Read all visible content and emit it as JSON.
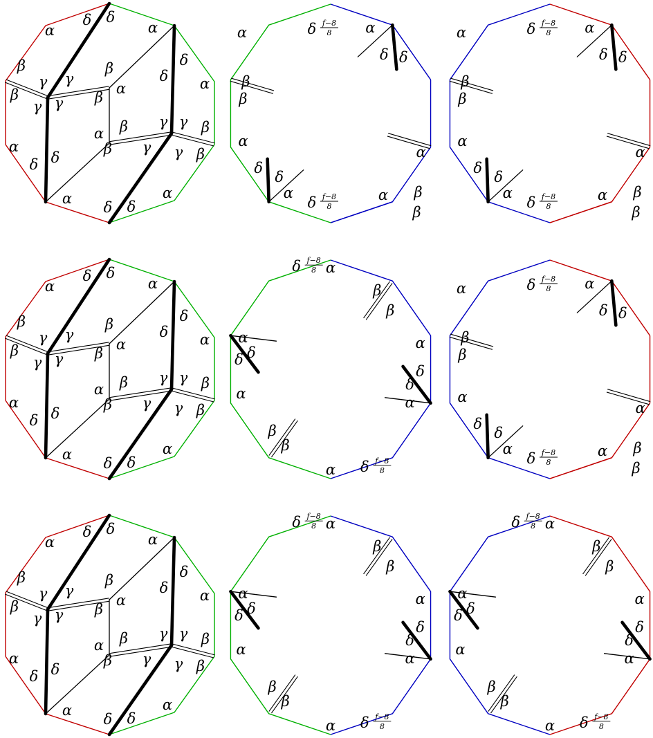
{
  "symbols": {
    "alpha": "α",
    "beta": "β",
    "gamma": "γ",
    "delta": "δ",
    "frac_num": "f−8",
    "frac_den": "8"
  },
  "colors": {
    "red": "#c00000",
    "green": "#00b000",
    "blue": "#0000c0",
    "black": "#000000"
  },
  "figure": {
    "rows": 3,
    "columns": 3,
    "polygon_sides": 10,
    "edge_types": [
      "thin",
      "thick",
      "double"
    ],
    "row_1": {
      "tiling_panel": "decagon tiling with α, β, γ, δ corners",
      "middle_panel_boundary_colors": [
        "green",
        "blue"
      ],
      "right_panel_boundary_colors": [
        "blue",
        "red"
      ]
    },
    "row_2": {
      "tiling_panel": "decagon tiling with α, β, γ, δ corners",
      "middle_panel_boundary_colors": [
        "green",
        "blue"
      ],
      "right_panel_boundary_colors": [
        "blue",
        "red"
      ]
    },
    "row_3": {
      "tiling_panel": "decagon tiling with α, β, γ, δ corners",
      "middle_panel_boundary_colors": [
        "green",
        "blue"
      ],
      "right_panel_boundary_colors": [
        "blue",
        "red"
      ]
    }
  }
}
